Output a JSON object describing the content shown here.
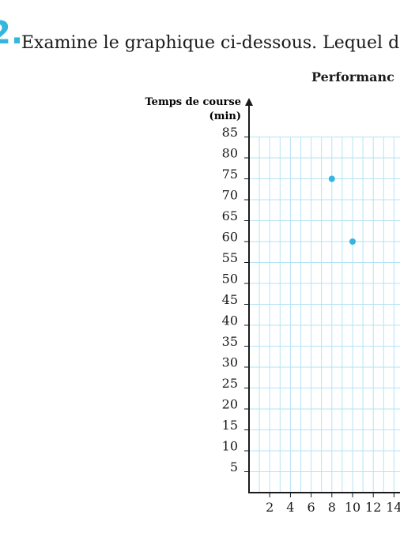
{
  "question": {
    "number": "2.",
    "text": "Examine le graphique ci-dessous. Lequel des"
  },
  "colors": {
    "accent": "#35b6de",
    "grid": "#b6e3f4",
    "point": "#35b6de",
    "axis": "#1a1a1a"
  },
  "chart_data": {
    "type": "scatter",
    "title": "Performanc",
    "ylabel_line1": "Temps de course",
    "ylabel_line2": "(min)",
    "xlabel": "",
    "xlim": [
      0,
      14
    ],
    "ylim": [
      0,
      85
    ],
    "x_ticks": [
      2,
      4,
      6,
      8,
      10,
      12,
      14
    ],
    "y_ticks": [
      5,
      10,
      15,
      20,
      25,
      30,
      35,
      40,
      45,
      50,
      55,
      60,
      65,
      70,
      75,
      80,
      85
    ],
    "grid": true,
    "points": [
      {
        "x": 8,
        "y": 75
      },
      {
        "x": 10,
        "y": 60
      }
    ]
  }
}
